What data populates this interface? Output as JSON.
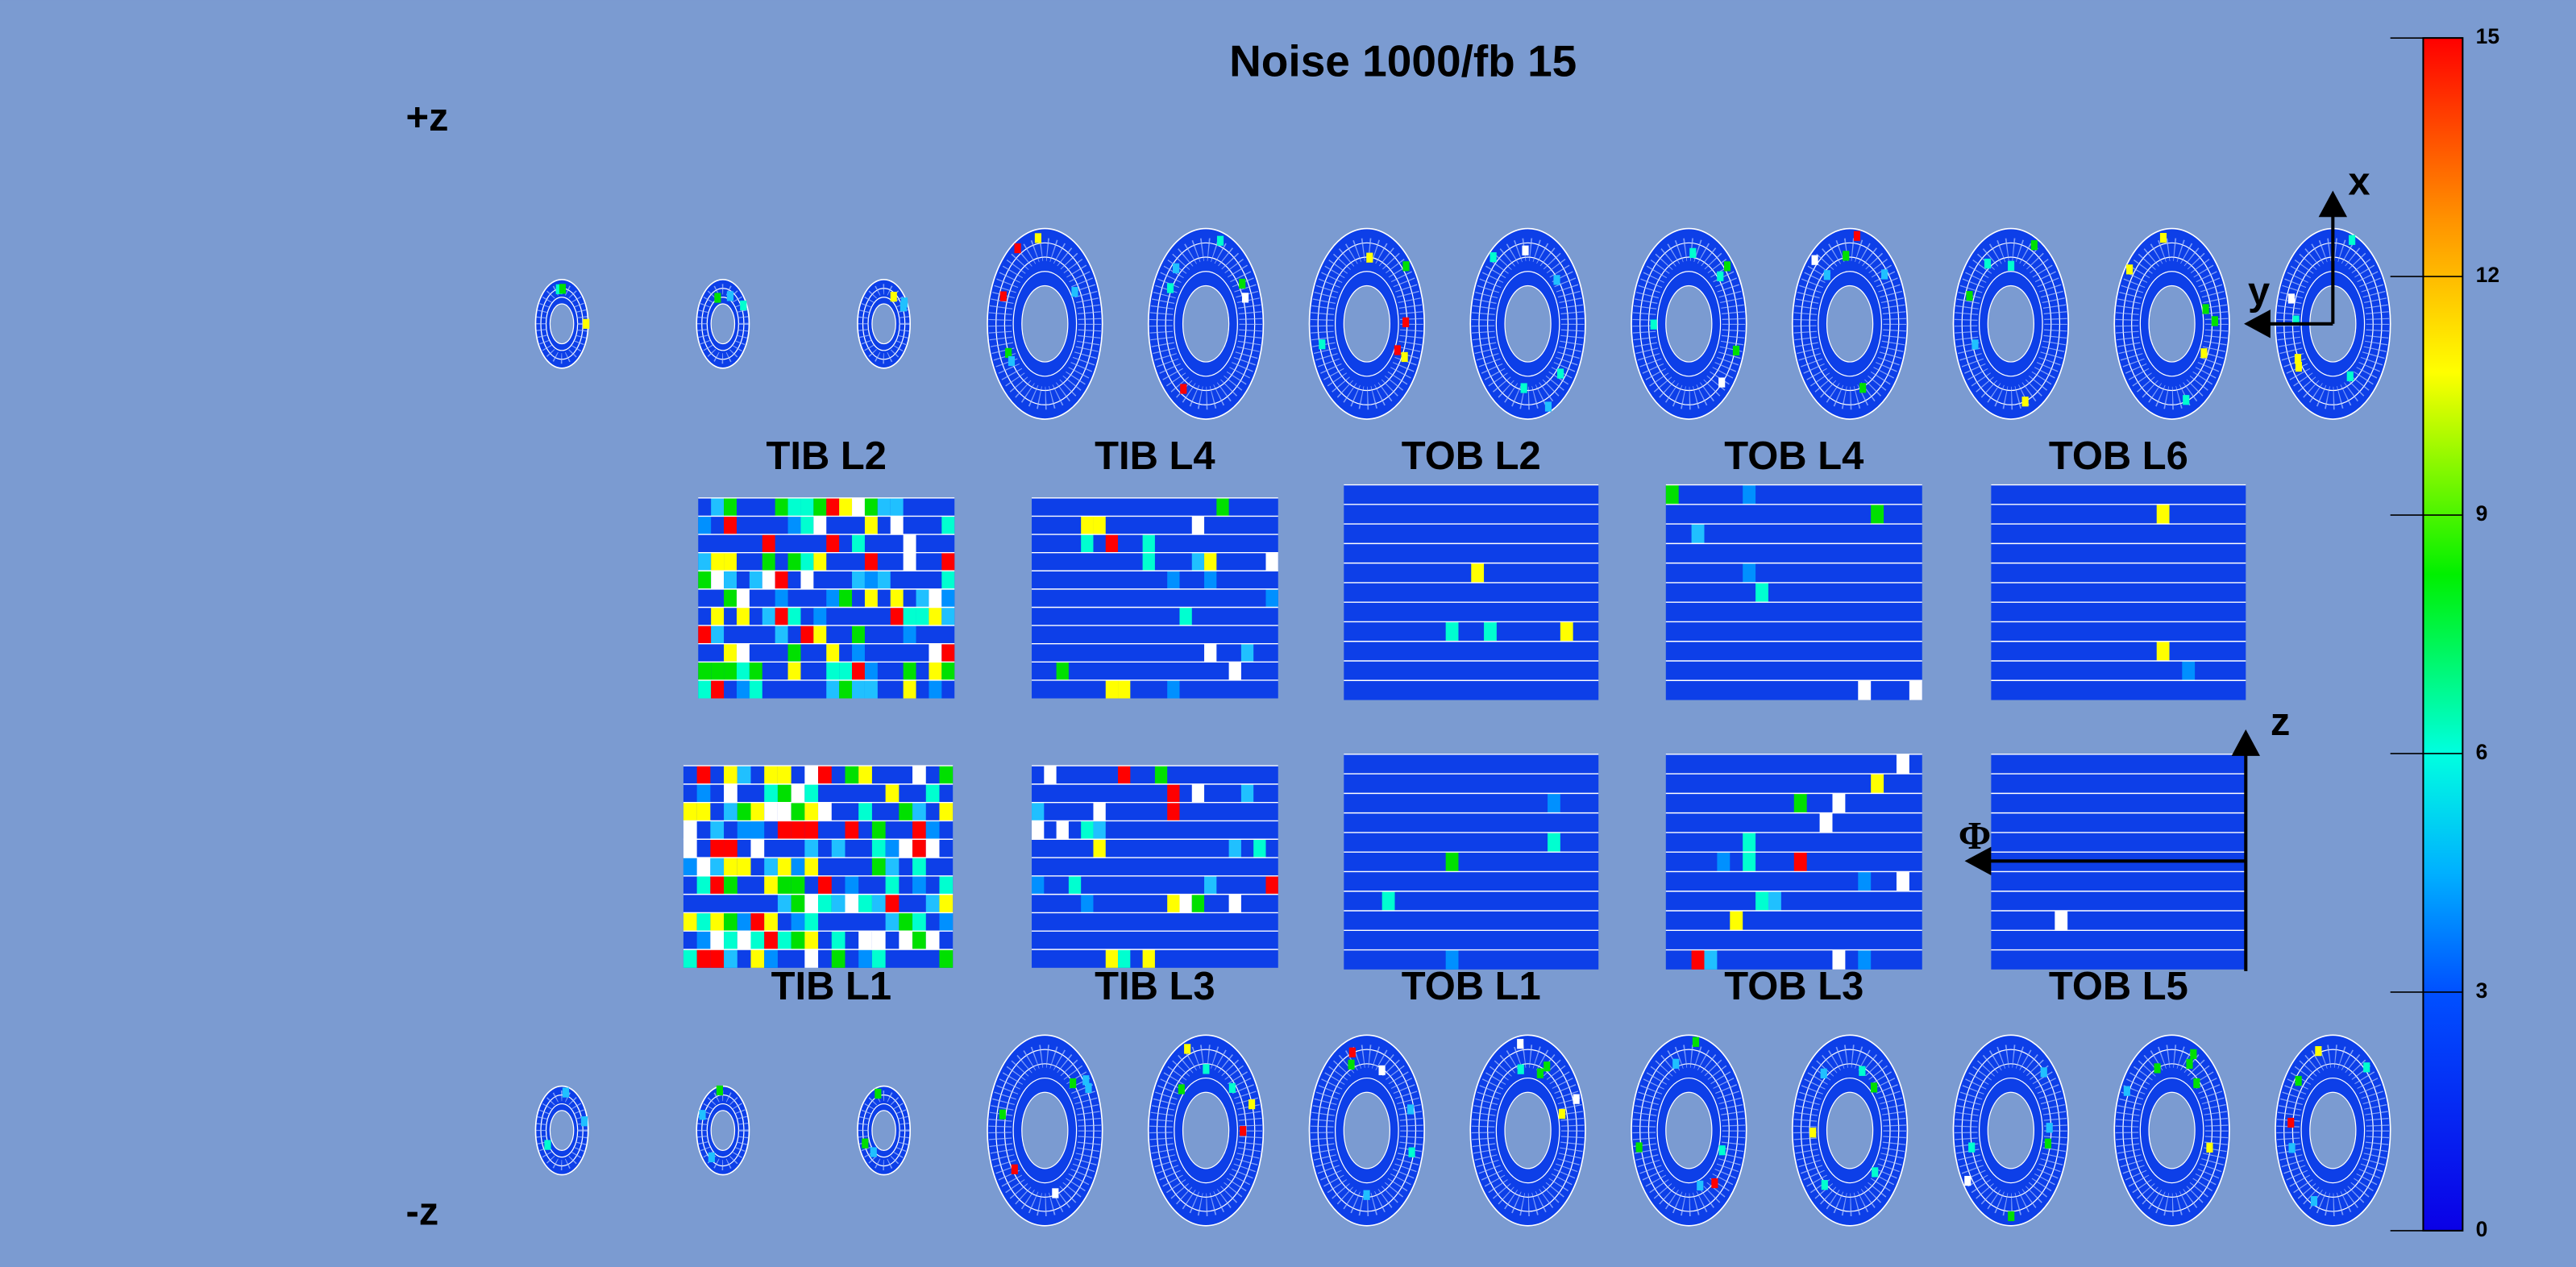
{
  "title": "Noise 1000/fb 15",
  "z_labels": {
    "plus": "+z",
    "minus": "-z"
  },
  "layers_top": [
    "TIB L2",
    "TIB L4",
    "TOB L2",
    "TOB L4",
    "TOB L6"
  ],
  "layers_bottom": [
    "TIB L1",
    "TIB L3",
    "TOB L1",
    "TOB L3",
    "TOB L5"
  ],
  "axes": {
    "x": "x",
    "y": "y",
    "z": "z",
    "phi": "Φ"
  },
  "colorbar": {
    "lim": [
      0,
      15
    ],
    "ticks": [
      0,
      3,
      6,
      9,
      12,
      15
    ]
  }
}
